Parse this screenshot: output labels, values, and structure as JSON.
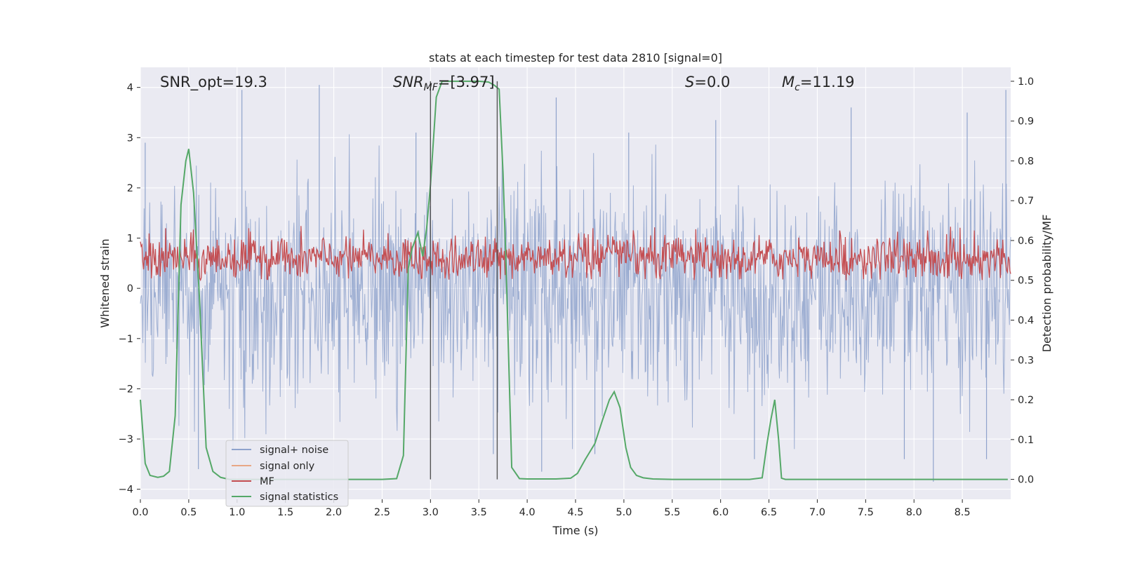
{
  "chart_data": {
    "type": "line",
    "title": "stats at each timestep for test data 2810 [signal=0]",
    "xlabel": "Time (s)",
    "ylabel": "Whitened strain",
    "ylabel_right": "Detection probability/MF",
    "xlim": [
      0.0,
      9.0
    ],
    "ylim": [
      -4.2,
      4.4
    ],
    "ylim_right": [
      -0.05,
      1.035
    ],
    "x_ticks": [
      0.0,
      0.5,
      1.0,
      1.5,
      2.0,
      2.5,
      3.0,
      3.5,
      4.0,
      4.5,
      5.0,
      5.5,
      6.0,
      6.5,
      7.0,
      7.5,
      8.0,
      8.5
    ],
    "x_tick_labels": [
      "0.0",
      "0.5",
      "1.0",
      "1.5",
      "2.0",
      "2.5",
      "3.0",
      "3.5",
      "4.0",
      "4.5",
      "5.0",
      "5.5",
      "6.0",
      "6.5",
      "7.0",
      "7.5",
      "8.0",
      "8.5"
    ],
    "y_ticks": [
      4,
      3,
      2,
      1,
      0,
      -1,
      -2,
      -3,
      -4
    ],
    "y_tick_labels": [
      "4",
      "3",
      "2",
      "1",
      "0",
      "−1",
      "−2",
      "−3",
      "−4"
    ],
    "y_right_ticks": [
      1.0,
      0.9,
      0.8,
      0.7,
      0.6,
      0.5,
      0.4,
      0.3,
      0.2,
      0.1,
      0.0
    ],
    "y_right_tick_labels": [
      "1.0",
      "0.9",
      "0.8",
      "0.7",
      "0.6",
      "0.5",
      "0.4",
      "0.3",
      "0.2",
      "0.1",
      "0.0"
    ],
    "grid": true,
    "legend_position": "lower-left",
    "annotations": {
      "snr_opt": "SNR_opt=19.3",
      "snr_mf_base": "SNR",
      "snr_mf_sub": "MF",
      "snr_mf_value": "=[3.97]",
      "s_sym": "S",
      "s_value": "=0.0",
      "mc_sym": "M",
      "mc_sub": "c",
      "mc_value": "=11.19"
    },
    "vertical_lines_x": [
      3.0,
      3.69
    ],
    "series": [
      {
        "name": "signal+ noise",
        "color": "#8fa3cc",
        "axis": "left",
        "style": "dense noise, roughly within ±3, extremes near ±4",
        "spikes": [
          [
            0.05,
            2.9
          ],
          [
            1.05,
            3.95
          ],
          [
            1.85,
            4.05
          ],
          [
            2.85,
            3.1
          ],
          [
            4.3,
            3.8
          ],
          [
            5.05,
            3.1
          ],
          [
            5.95,
            3.35
          ],
          [
            7.35,
            3.6
          ],
          [
            8.55,
            3.5
          ],
          [
            8.95,
            3.95
          ],
          [
            0.6,
            -3.6
          ],
          [
            3.65,
            -3.3
          ],
          [
            4.15,
            -3.65
          ],
          [
            6.35,
            -3.4
          ],
          [
            7.9,
            -3.4
          ],
          [
            8.2,
            -3.85
          ],
          [
            4.7,
            -3.3
          ],
          [
            8.75,
            -3.4
          ]
        ]
      },
      {
        "name": "signal only",
        "color": "#e8a786",
        "axis": "left",
        "x": [],
        "y": []
      },
      {
        "name": "MF",
        "color": "#c44e52",
        "axis": "right",
        "style": "noisy band between about 0.5 and 0.63"
      },
      {
        "name": "signal statistics",
        "color": "#55a868",
        "axis": "right",
        "x": [
          0.0,
          0.05,
          0.1,
          0.18,
          0.24,
          0.3,
          0.36,
          0.42,
          0.47,
          0.5,
          0.55,
          0.61,
          0.68,
          0.75,
          0.83,
          0.92,
          1.0,
          1.5,
          2.0,
          2.5,
          2.65,
          2.72,
          2.77,
          2.81,
          2.87,
          2.92,
          2.96,
          3.0,
          3.06,
          3.12,
          3.16,
          3.25,
          3.35,
          3.5,
          3.6,
          3.66,
          3.71,
          3.75,
          3.78,
          3.84,
          3.92,
          4.0,
          4.1,
          4.3,
          4.45,
          4.52,
          4.6,
          4.7,
          4.78,
          4.85,
          4.9,
          4.96,
          5.02,
          5.07,
          5.13,
          5.2,
          5.3,
          5.5,
          5.7,
          6.0,
          6.3,
          6.43,
          6.48,
          6.52,
          6.56,
          6.6,
          6.63,
          6.67,
          6.75,
          7.0,
          7.5,
          8.0,
          8.5,
          8.97
        ],
        "y": [
          0.2,
          0.04,
          0.01,
          0.005,
          0.008,
          0.02,
          0.16,
          0.69,
          0.8,
          0.83,
          0.72,
          0.46,
          0.08,
          0.02,
          0.005,
          0.0,
          0.0,
          0.0,
          0.0,
          0.0,
          0.002,
          0.06,
          0.53,
          0.58,
          0.62,
          0.56,
          0.63,
          0.74,
          0.96,
          1.0,
          1.0,
          1.0,
          1.0,
          1.0,
          0.998,
          0.99,
          0.98,
          0.77,
          0.55,
          0.03,
          0.002,
          0.001,
          0.001,
          0.001,
          0.003,
          0.015,
          0.05,
          0.09,
          0.15,
          0.2,
          0.22,
          0.18,
          0.08,
          0.03,
          0.01,
          0.004,
          0.001,
          0.0,
          0.0,
          0.0,
          0.0,
          0.004,
          0.09,
          0.15,
          0.2,
          0.1,
          0.003,
          0.0,
          0.0,
          0.0,
          0.0,
          0.0,
          0.0,
          0.0
        ]
      }
    ]
  }
}
